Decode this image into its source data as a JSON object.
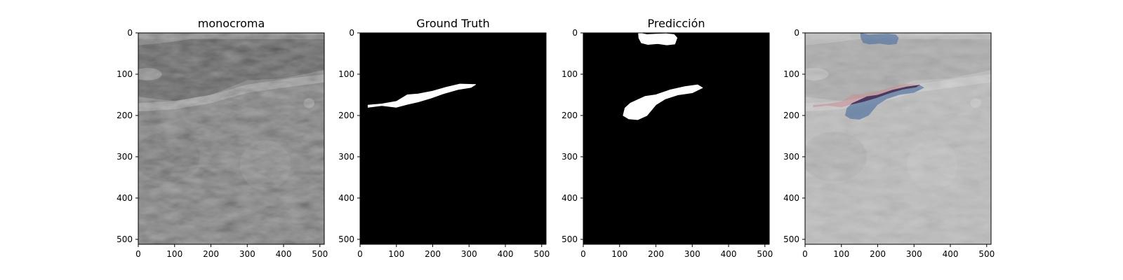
{
  "chart_data": {
    "type": "image_grid",
    "image_size": [
      512,
      512
    ],
    "xlim": [
      0,
      512
    ],
    "ylim": [
      512,
      0
    ],
    "x_ticks": [
      0,
      100,
      200,
      300,
      400,
      500
    ],
    "y_ticks": [
      0,
      100,
      200,
      300,
      400,
      500
    ],
    "panels": [
      {
        "id": "monochrome",
        "title": "monocroma",
        "kind": "ultrasound",
        "background": "#5a5a5a"
      },
      {
        "id": "ground-truth",
        "title": "Ground Truth",
        "kind": "mask",
        "background": "#000000",
        "regions": [
          {
            "name": "gt-lesion",
            "color": "#ffffff",
            "points": [
              [
                22,
                175
              ],
              [
                60,
                172
              ],
              [
                100,
                166
              ],
              [
                130,
                150
              ],
              [
                160,
                148
              ],
              [
                200,
                141
              ],
              [
                240,
                131
              ],
              [
                275,
                124
              ],
              [
                318,
                125
              ],
              [
                305,
                132
              ],
              [
                270,
                137
              ],
              [
                230,
                147
              ],
              [
                195,
                158
              ],
              [
                160,
                167
              ],
              [
                130,
                173
              ],
              [
                100,
                180
              ],
              [
                60,
                176
              ],
              [
                22,
                180
              ]
            ]
          }
        ]
      },
      {
        "id": "prediction",
        "title": "Predicción",
        "kind": "mask",
        "background": "#000000",
        "regions": [
          {
            "name": "pred-lesion-top",
            "color": "#ffffff",
            "points": [
              [
                152,
                0
              ],
              [
                175,
                4
              ],
              [
                200,
                3
              ],
              [
                228,
                2
              ],
              [
                250,
                4
              ],
              [
                258,
                12
              ],
              [
                252,
                27
              ],
              [
                230,
                29
              ],
              [
                205,
                26
              ],
              [
                178,
                28
              ],
              [
                160,
                24
              ],
              [
                153,
                12
              ]
            ]
          },
          {
            "name": "pred-lesion-main",
            "color": "#ffffff",
            "points": [
              [
                170,
                154
              ],
              [
                200,
                150
              ],
              [
                240,
                138
              ],
              [
                280,
                130
              ],
              [
                315,
                126
              ],
              [
                328,
                133
              ],
              [
                300,
                145
              ],
              [
                260,
                150
              ],
              [
                225,
                160
              ],
              [
                200,
                174
              ],
              [
                175,
                200
              ],
              [
                150,
                210
              ],
              [
                125,
                208
              ],
              [
                110,
                200
              ],
              [
                115,
                182
              ],
              [
                130,
                170
              ],
              [
                150,
                162
              ]
            ]
          }
        ]
      },
      {
        "id": "overlay",
        "title": "",
        "kind": "overlay",
        "background": "#bdbdbd",
        "overlay_colors": {
          "ground_truth": "#c98f96",
          "prediction": "#5c7aa3",
          "overlap": "#3a2a55"
        }
      }
    ]
  }
}
